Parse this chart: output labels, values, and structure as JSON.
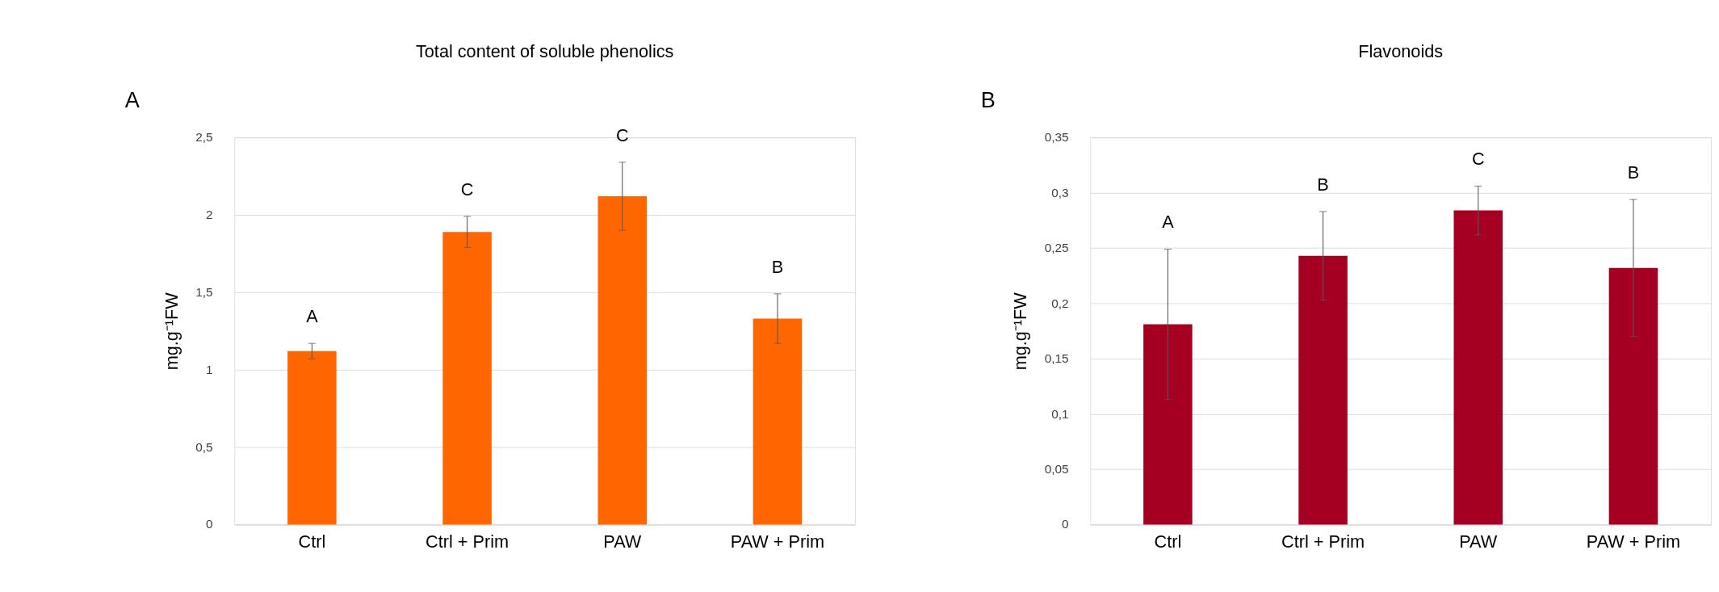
{
  "chart_data": [
    {
      "type": "bar",
      "title": "Total content of soluble phenolics",
      "ylabel": "mg.g⁻¹FW",
      "categories": [
        "Ctrl",
        "Ctrl + Prim",
        "PAW",
        "PAW + Prim"
      ],
      "values": [
        1.12,
        1.89,
        2.12,
        1.33
      ],
      "errors": [
        0.05,
        0.1,
        0.22,
        0.16
      ],
      "colors": [
        "#ff6600",
        "#ff6600",
        "#ff6600",
        "#ff6600"
      ],
      "ylim": [
        0,
        2.5
      ],
      "yticks": [
        0,
        {
          "value": 0.5,
          "label": "0,5"
        },
        1,
        {
          "value": 1.5,
          "label": "1,5"
        },
        2,
        {
          "value": 2.5,
          "label": "2,5"
        }
      ],
      "grid": "y",
      "annotations": [
        "A",
        {
          "text": "A",
          "x": "Ctrl",
          "y": 1.17
        },
        {
          "text": "C",
          "x": "Ctrl + Prim",
          "y": 1.99
        },
        {
          "text": "C",
          "x": "PAW",
          "y": 2.34
        },
        {
          "text": "B",
          "x": "PAW + Prim",
          "y": 1.49
        }
      ]
    },
    {
      "type": "bar",
      "title": "Flavonoids",
      "ylabel": "mg.g⁻¹FW",
      "categories": [
        "Ctrl",
        "Ctrl + Prim",
        "PAW",
        "PAW + Prim"
      ],
      "values": [
        0.181,
        0.243,
        0.284,
        0.232
      ],
      "errors": [
        0.068,
        0.04,
        0.022,
        0.062
      ],
      "colors": [
        "#a50021",
        "#a50021",
        "#a50021",
        "#a50021"
      ],
      "ylim": [
        0,
        0.35
      ],
      "yticks": [
        0,
        {
          "value": 0.05,
          "label": "0,05"
        },
        {
          "value": 0.1,
          "label": "0,1"
        },
        {
          "value": 0.15,
          "label": "0,15"
        },
        {
          "value": 0.2,
          "label": "0,2"
        },
        {
          "value": 0.25,
          "label": "0,25"
        },
        {
          "value": 0.3,
          "label": "0,3"
        },
        {
          "value": 0.35,
          "label": "0,35"
        }
      ],
      "grid": "y",
      "annotations": [
        "B",
        {
          "text": "A",
          "x": "Ctrl",
          "y": 0.249
        },
        {
          "text": "B",
          "x": "Ctrl + Prim",
          "y": 0.283
        },
        {
          "text": "C",
          "x": "PAW",
          "y": 0.306
        },
        {
          "text": "B",
          "x": "PAW + Prim",
          "y": 0.294
        }
      ]
    }
  ]
}
